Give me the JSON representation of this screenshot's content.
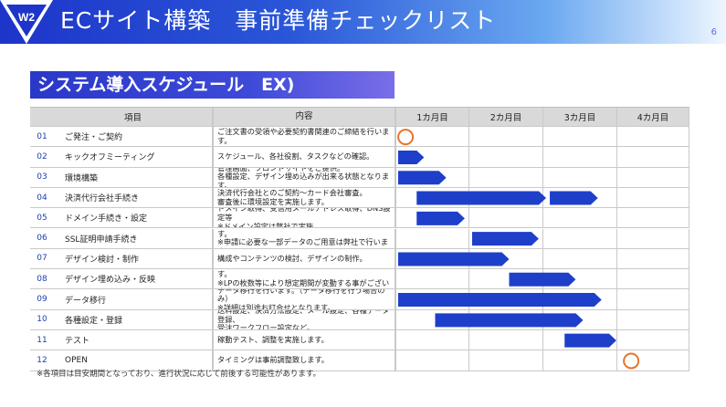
{
  "header": {
    "title": "ECサイト構築　事前準備チェックリスト",
    "page_number": "6",
    "logo_text": "W2"
  },
  "section_title": "システム導入スケジュール　EX)",
  "table": {
    "columns": [
      "項目",
      "内容",
      "1カ月目",
      "2カ月目",
      "3カ月目",
      "4カ月目"
    ],
    "rows": [
      {
        "num": "01",
        "item": "ご発注・ご契約",
        "desc": [
          "ご注文書の受領や必要契約書関連のご締結を行います。"
        ],
        "marks": [
          {
            "type": "circle",
            "pos": 0.1
          }
        ]
      },
      {
        "num": "02",
        "item": "キックオフミーティング",
        "desc": [
          "スケジュール、各社役割、タスクなどの確認。"
        ],
        "marks": [
          {
            "type": "bar",
            "start": 0.0,
            "end": 0.35
          }
        ]
      },
      {
        "num": "03",
        "item": "環境構築",
        "desc": [
          "管理画面、フロントサイトをご提供。",
          "各種設定、デザイン埋め込みが出来る状態となります。"
        ],
        "marks": [
          {
            "type": "bar",
            "start": 0.0,
            "end": 0.65
          }
        ]
      },
      {
        "num": "04",
        "item": "決済代行会社手続き",
        "desc": [
          "決済代行会社とのご契約〜カード会社審査。",
          "審査後に環境設定を実施します。"
        ],
        "marks": [
          {
            "type": "bar",
            "start": 0.25,
            "end": 2.0
          },
          {
            "type": "bar",
            "start": 2.05,
            "end": 2.7
          }
        ]
      },
      {
        "num": "05",
        "item": "ドメイン手続き・設定",
        "desc": [
          "ドメイン取得、受信用メールアドレス取得、DNS設定等",
          "※ドメイン設定は弊社で実施。"
        ],
        "marks": [
          {
            "type": "bar",
            "start": 0.25,
            "end": 0.9
          }
        ]
      },
      {
        "num": "06",
        "item": "SSL証明申請手続き",
        "desc": [
          "申請は貴社、インストール作業は弊社にて実施します。",
          "※申請に必要な一部データのご用意は弊社で行います。"
        ],
        "marks": [
          {
            "type": "bar",
            "start": 1.0,
            "end": 1.9
          }
        ]
      },
      {
        "num": "07",
        "item": "デザイン検討・制作",
        "desc": [
          "構成やコンテンツの検討、デザインの制作。"
        ],
        "marks": [
          {
            "type": "bar",
            "start": 0.0,
            "end": 1.5
          }
        ]
      },
      {
        "num": "08",
        "item": "デザイン埋め込み・反映",
        "desc": [
          "デザイン会社にてシステムへの埋め込みを実施します。",
          "※LPの枚数等により想定期間が変動する事がございます。"
        ],
        "marks": [
          {
            "type": "bar",
            "start": 1.5,
            "end": 2.4
          }
        ]
      },
      {
        "num": "09",
        "item": "データ移行",
        "desc": [
          "データ移行を行います。（データ移行を行う場合のみ）",
          "※詳細は別途お打合せとなります。"
        ],
        "marks": [
          {
            "type": "bar",
            "start": 0.0,
            "end": 2.75
          }
        ]
      },
      {
        "num": "10",
        "item": "各種設定・登録",
        "desc": [
          "送料設定、決済方法設定、メール設定、各種データ登録、",
          "受注ワークフロー設定など。"
        ],
        "marks": [
          {
            "type": "bar",
            "start": 0.5,
            "end": 2.5
          }
        ]
      },
      {
        "num": "11",
        "item": "テスト",
        "desc": [
          "稼動テスト、調整を実施します。"
        ],
        "marks": [
          {
            "type": "bar",
            "start": 2.25,
            "end": 2.95
          }
        ]
      },
      {
        "num": "12",
        "item": "OPEN",
        "desc": [
          "タイミングは事前調整致します。"
        ],
        "marks": [
          {
            "type": "circle",
            "pos": 3.15
          }
        ]
      }
    ]
  },
  "footnote": "※各項目は目安期間となっており、進行状況に応じて前後する可能性があります。",
  "colors": {
    "bar": "#1e3fc9",
    "circle": "#e8742a",
    "num": "#1a3fb0"
  }
}
